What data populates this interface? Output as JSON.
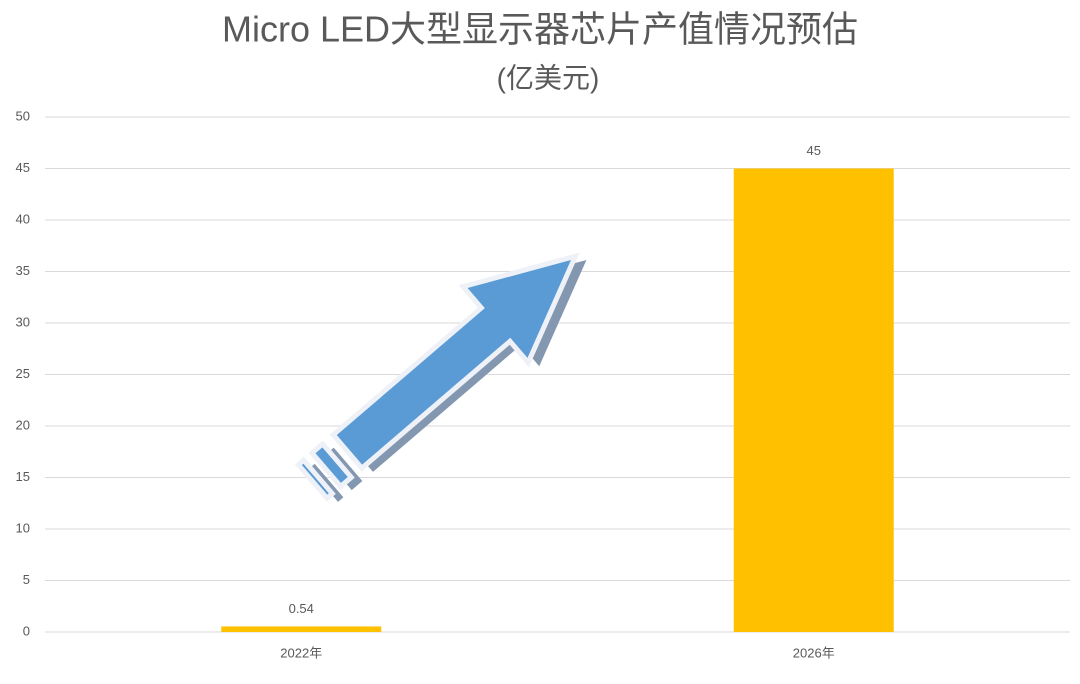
{
  "chart_data": {
    "type": "bar",
    "title": "Micro LED大型显示器芯片产值情况预估",
    "subtitle": "(亿美元)",
    "categories": [
      "2022年",
      "2026年"
    ],
    "values": [
      0.54,
      45
    ],
    "color": "#ffc000",
    "ylim": [
      0,
      50
    ],
    "yticks": [
      0,
      5,
      10,
      15,
      20,
      25,
      30,
      35,
      40,
      45,
      50
    ],
    "grid": true
  }
}
